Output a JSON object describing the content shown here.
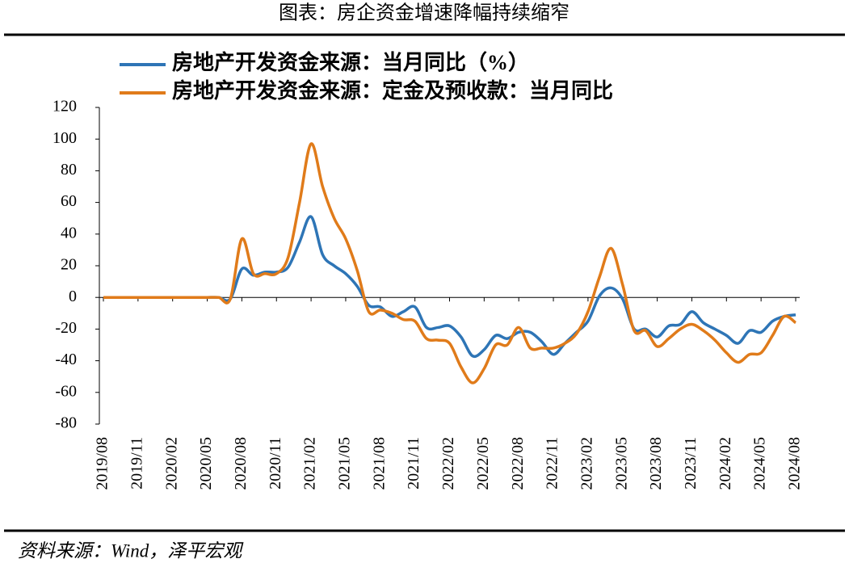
{
  "chart_data": {
    "type": "line",
    "title": "图表：房企资金增速降幅持续缩窄",
    "source": "资料来源：Wind，泽平宏观",
    "categories": [
      "2019/08",
      null,
      null,
      "2019/11",
      null,
      null,
      "2020/02",
      null,
      null,
      "2020/05",
      null,
      null,
      "2020/08",
      null,
      null,
      "2020/11",
      null,
      null,
      "2021/02",
      null,
      null,
      "2021/05",
      null,
      null,
      "2021/08",
      null,
      null,
      "2021/11",
      null,
      null,
      "2022/02",
      null,
      null,
      "2022/05",
      null,
      null,
      "2022/08",
      null,
      null,
      "2022/11",
      null,
      null,
      "2023/02",
      null,
      null,
      "2023/05",
      null,
      null,
      "2023/08",
      null,
      null,
      "2023/11",
      null,
      null,
      "2024/02",
      null,
      null,
      "2024/05",
      null,
      null,
      "2024/08"
    ],
    "series": [
      {
        "name": "房地产开发资金来源：当月同比（%）",
        "color": "#2e75b6",
        "values": [
          0,
          0,
          0,
          0,
          0,
          0,
          0,
          0,
          0,
          0,
          0,
          -1,
          18,
          14,
          16,
          16,
          19,
          35,
          51,
          27,
          20,
          15,
          7,
          -5,
          -6,
          -12,
          -9,
          -6,
          -19,
          -19,
          -18,
          -25,
          -37,
          -33,
          -24,
          -26,
          -22,
          -22,
          -28,
          -36,
          -29,
          -22,
          -15,
          1,
          6,
          -1,
          -20,
          -20,
          -25,
          -18,
          -17,
          -9,
          -16,
          -20,
          -24,
          -29,
          -21,
          -22,
          -15,
          -12,
          -11
        ]
      },
      {
        "name": "房地产开发资金来源：定金及预收款：当月同比",
        "color": "#e07b1a",
        "values": [
          0,
          0,
          0,
          0,
          0,
          0,
          0,
          0,
          0,
          0,
          0,
          -1,
          37,
          15,
          15,
          15,
          25,
          60,
          97,
          70,
          50,
          37,
          17,
          -9,
          -8,
          -10,
          -14,
          -15,
          -26,
          -27,
          -29,
          -44,
          -54,
          -45,
          -30,
          -30,
          -19,
          -32,
          -32,
          -32,
          -29,
          -23,
          -9,
          13,
          31,
          8,
          -21,
          -21,
          -31,
          -26,
          -20,
          -17,
          -21,
          -27,
          -35,
          -41,
          -36,
          -35,
          -24,
          -12,
          -16
        ]
      }
    ],
    "ylim": [
      -80,
      120
    ],
    "yticks": [
      -80,
      -60,
      -40,
      -20,
      0,
      20,
      40,
      60,
      80,
      100,
      120
    ]
  }
}
